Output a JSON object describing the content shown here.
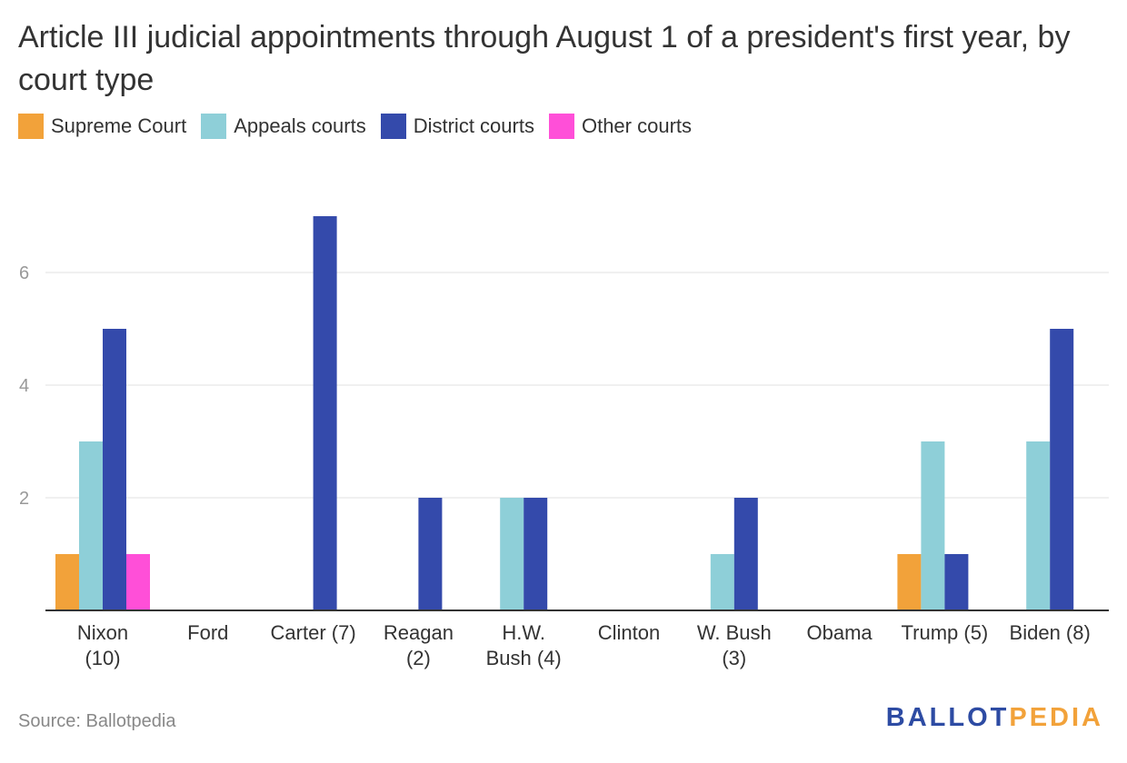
{
  "chart_data": {
    "type": "bar",
    "title": "Article III judicial appointments through August 1 of a president's first year, by court type",
    "categories": [
      [
        "Nixon",
        "(10)"
      ],
      [
        "Ford"
      ],
      [
        "Carter (7)"
      ],
      [
        "Reagan",
        "(2)"
      ],
      [
        "H.W.",
        "Bush (4)"
      ],
      [
        "Clinton"
      ],
      [
        "W. Bush",
        "(3)"
      ],
      [
        "Obama"
      ],
      [
        "Trump (5)"
      ],
      [
        "Biden (8)"
      ]
    ],
    "series": [
      {
        "name": "Supreme Court",
        "color": "#f2a23a",
        "values": [
          1,
          0,
          0,
          0,
          0,
          0,
          0,
          0,
          1,
          0
        ]
      },
      {
        "name": "Appeals courts",
        "color": "#8ecfd8",
        "values": [
          3,
          0,
          0,
          0,
          2,
          0,
          1,
          0,
          3,
          3
        ]
      },
      {
        "name": "District courts",
        "color": "#344aab",
        "values": [
          5,
          0,
          7,
          2,
          2,
          0,
          2,
          0,
          1,
          5
        ]
      },
      {
        "name": "Other courts",
        "color": "#ff4fd8",
        "values": [
          1,
          0,
          0,
          0,
          0,
          0,
          0,
          0,
          0,
          0
        ]
      }
    ],
    "y_ticks": [
      2,
      4,
      6
    ],
    "ylim": [
      0,
      7
    ],
    "grid": true,
    "xlabel": "",
    "ylabel": ""
  },
  "source": "Source: Ballotpedia",
  "logo": {
    "part1": "BALLOT",
    "part2": "PEDIA"
  }
}
